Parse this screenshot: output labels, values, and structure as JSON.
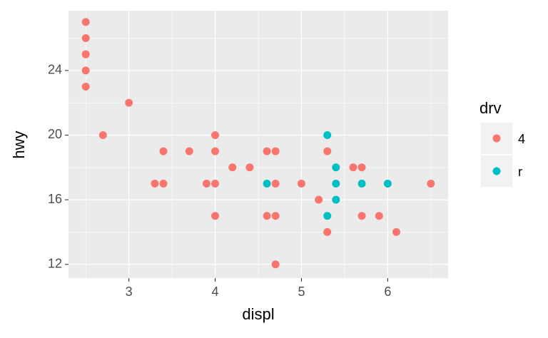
{
  "chart_data": {
    "type": "scatter",
    "x_label": "displ",
    "y_label": "hwy",
    "legend_title": "drv",
    "legend_position": "right",
    "background": "#EBEBEB",
    "grid": true,
    "xlim": [
      2.3,
      6.7
    ],
    "ylim": [
      11.15,
      27.7
    ],
    "xticks": [
      3,
      4,
      5,
      6
    ],
    "yticks": [
      12,
      16,
      20,
      24
    ],
    "series": [
      {
        "name": "4",
        "color": "#F8766D",
        "x": [
          2.5,
          2.5,
          2.5,
          2.5,
          2.5,
          3.0,
          2.7,
          4.0,
          4.0,
          4.0,
          4.0,
          3.4,
          3.4,
          3.7,
          3.3,
          3.9,
          4.2,
          4.4,
          4.6,
          4.6,
          4.7,
          4.7,
          4.7,
          4.7,
          5.0,
          5.3,
          5.3,
          5.2,
          5.6,
          5.7,
          5.7,
          5.9,
          6.1,
          6.5
        ],
        "values": [
          27,
          26,
          25,
          24,
          23,
          22,
          20,
          20,
          19,
          17,
          15,
          19,
          17,
          19,
          17,
          17,
          18,
          18,
          19,
          15,
          19,
          17,
          15,
          12,
          17,
          19,
          14,
          16,
          18,
          18,
          15,
          15,
          14,
          17
        ]
      },
      {
        "name": "r",
        "color": "#00BFC4",
        "x": [
          4.6,
          5.3,
          5.4,
          5.4,
          5.4,
          5.3,
          5.7,
          6.0
        ],
        "values": [
          17,
          20,
          18,
          17,
          16,
          15,
          17,
          17
        ]
      }
    ]
  }
}
